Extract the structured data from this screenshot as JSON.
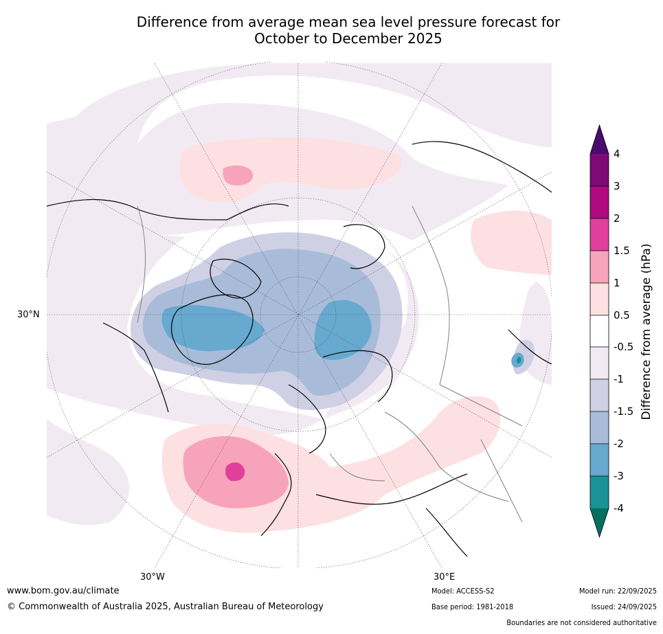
{
  "title": {
    "line1": "Difference from average mean sea level pressure forecast for",
    "line2": "October to December 2025"
  },
  "map": {
    "lat_label": "30°N",
    "lon_labels": [
      "30°W",
      "30°E"
    ]
  },
  "colorbar": {
    "title": "Difference from average (hPa)",
    "tick_labels": [
      "4",
      "3",
      "2",
      "1.5",
      "1",
      "0.5",
      "-0.5",
      "-1",
      "-1.5",
      "-2",
      "-3",
      "-4"
    ],
    "colors": {
      "over": "#4a0b6e",
      "c4_3": "#7d0a77",
      "c3_2": "#b00a80",
      "c2_15": "#e0409c",
      "c15_1": "#f7a3bb",
      "c1_05": "#fde0e2",
      "c05_m05": "#ffffff",
      "cm05_m1": "#f2eaf3",
      "cm1_m15": "#d0d0e5",
      "cm15_m2": "#a8bcd9",
      "cm2_m3": "#67a9cf",
      "cm3_m4": "#1b9198",
      "under": "#06705f"
    }
  },
  "footer": {
    "url": "www.bom.gov.au/climate",
    "copyright": "© Commonwealth of Australia 2025, Australian Bureau of Meteorology",
    "model": "Model: ACCESS-S2",
    "base_period": "Base period: 1981-2018",
    "model_run": "Model run: 22/09/2025",
    "issued": "Issued: 24/09/2025",
    "disclaimer": "Boundaries are not considered authoritative"
  }
}
